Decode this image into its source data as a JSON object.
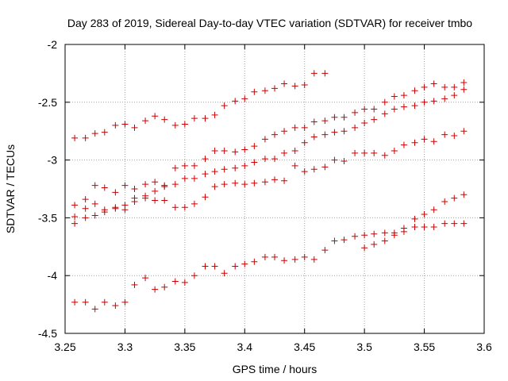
{
  "chart_data": {
    "type": "scatter",
    "title": "Day 283 of 2019, Sidereal Day-to-day VTEC variation (SDTVAR) for receiver tmbo",
    "xlabel": "GPS time / hours",
    "ylabel": "SDTVAR / TECUs",
    "xlim": [
      3.25,
      3.6
    ],
    "ylim": [
      -4.5,
      -2
    ],
    "xticks": [
      "3.25",
      "3.3",
      "3.35",
      "3.4",
      "3.45",
      "3.5",
      "3.55",
      "3.6"
    ],
    "yticks": [
      "-2",
      "-2.5",
      "-3",
      "-3.5",
      "-4",
      "-4.5"
    ],
    "grid": true,
    "marker": "+",
    "color": "#cc0000",
    "series": [
      {
        "name": "series-1",
        "x": [
          3.258,
          3.267,
          3.275,
          3.283,
          3.292,
          3.3,
          3.308,
          3.317,
          3.325,
          3.333,
          3.342,
          3.35,
          3.358,
          3.367,
          3.375,
          3.383,
          3.392,
          3.4,
          3.408,
          3.417,
          3.425,
          3.433,
          3.442,
          3.45,
          3.458,
          3.467
        ],
        "y": [
          -2.81,
          -2.81,
          -2.77,
          -2.76,
          -2.7,
          -2.69,
          -2.72,
          -2.66,
          -2.62,
          -2.65,
          -2.7,
          -2.69,
          -2.64,
          -2.64,
          -2.61,
          -2.53,
          -2.49,
          -2.47,
          -2.41,
          -2.4,
          -2.38,
          -2.34,
          -2.36,
          -2.35,
          -2.25,
          -2.25
        ]
      },
      {
        "name": "series-2",
        "x": [
          3.258,
          3.267,
          3.275,
          3.283,
          3.292,
          3.3,
          3.308,
          3.317,
          3.325,
          3.333,
          3.342,
          3.35,
          3.358,
          3.367,
          3.375,
          3.383,
          3.392,
          3.4,
          3.408,
          3.417,
          3.425,
          3.433,
          3.442,
          3.45,
          3.458,
          3.467,
          3.475,
          3.483,
          3.492,
          3.5,
          3.508,
          3.517,
          3.525,
          3.533,
          3.542,
          3.55,
          3.558,
          3.567,
          3.575,
          3.583
        ],
        "y": [
          -3.39,
          -3.34,
          -3.22,
          -3.24,
          -3.28,
          -3.22,
          -3.25,
          -3.21,
          -3.19,
          -3.23,
          -3.07,
          -3.05,
          -3.05,
          -2.99,
          -2.92,
          -2.92,
          -2.93,
          -2.91,
          -2.88,
          -2.82,
          -2.78,
          -2.75,
          -2.72,
          -2.72,
          -2.67,
          -2.66,
          -2.63,
          -2.63,
          -2.59,
          -2.56,
          -2.56,
          -2.5,
          -2.45,
          -2.44,
          -2.4,
          -2.37,
          -2.34,
          -2.37,
          -2.37,
          -2.33
        ]
      },
      {
        "name": "series-3",
        "x": [
          3.258,
          3.267,
          3.275,
          3.283,
          3.292,
          3.3,
          3.308,
          3.317,
          3.325,
          3.333,
          3.342,
          3.35,
          3.358,
          3.367,
          3.375,
          3.383,
          3.392,
          3.4,
          3.408,
          3.417,
          3.425,
          3.433,
          3.442,
          3.45,
          3.458,
          3.467,
          3.475,
          3.483,
          3.492,
          3.5,
          3.508,
          3.517,
          3.525,
          3.533,
          3.542,
          3.55,
          3.558,
          3.567,
          3.575,
          3.583
        ],
        "y": [
          -3.49,
          -3.42,
          -3.38,
          -3.43,
          -3.42,
          -3.39,
          -3.36,
          -3.33,
          -3.27,
          -3.22,
          -3.21,
          -3.16,
          -3.16,
          -3.12,
          -3.1,
          -3.08,
          -3.07,
          -3.05,
          -3.02,
          -2.99,
          -2.99,
          -2.94,
          -2.92,
          -2.85,
          -2.8,
          -2.78,
          -2.76,
          -2.75,
          -2.72,
          -2.68,
          -2.65,
          -2.6,
          -2.56,
          -2.54,
          -2.53,
          -2.5,
          -2.49,
          -2.47,
          -2.44,
          -2.39
        ]
      },
      {
        "name": "series-4",
        "x": [
          3.258,
          3.267,
          3.275,
          3.283,
          3.292,
          3.3,
          3.308,
          3.317,
          3.325,
          3.333,
          3.342,
          3.35,
          3.358,
          3.367,
          3.375,
          3.383,
          3.392,
          3.4,
          3.408,
          3.417,
          3.425,
          3.433,
          3.442,
          3.45,
          3.458,
          3.467,
          3.475,
          3.483,
          3.492,
          3.5,
          3.508,
          3.517,
          3.525,
          3.533,
          3.542,
          3.55,
          3.558,
          3.567,
          3.575,
          3.583
        ],
        "y": [
          -3.55,
          -3.5,
          -3.48,
          -3.45,
          -3.41,
          -3.43,
          -3.33,
          -3.31,
          -3.35,
          -3.35,
          -3.41,
          -3.41,
          -3.38,
          -3.32,
          -3.23,
          -3.21,
          -3.2,
          -3.21,
          -3.2,
          -3.19,
          -3.17,
          -3.18,
          -3.05,
          -3.1,
          -3.08,
          -3.06,
          -3.0,
          -3.01,
          -2.94,
          -2.94,
          -2.94,
          -2.96,
          -2.92,
          -2.87,
          -2.85,
          -2.82,
          -2.84,
          -2.78,
          -2.79,
          -2.75
        ]
      },
      {
        "name": "series-5",
        "x": [
          3.258,
          3.267,
          3.275,
          3.283,
          3.292,
          3.3,
          3.308,
          3.317,
          3.325,
          3.333,
          3.342,
          3.35,
          3.358,
          3.367,
          3.375,
          3.383,
          3.392,
          3.4,
          3.408,
          3.417,
          3.425,
          3.433,
          3.442,
          3.45,
          3.458,
          3.467,
          3.475,
          3.483,
          3.492,
          3.5,
          3.508,
          3.517,
          3.525,
          3.533,
          3.542,
          3.55,
          3.558,
          3.567,
          3.575,
          3.583
        ],
        "y": [
          -4.23,
          -4.23,
          -4.29,
          -4.23,
          -4.26,
          -4.23,
          -4.08,
          -4.02,
          -4.12,
          -4.1,
          -4.05,
          -4.06,
          -4.0,
          -3.92,
          -3.92,
          -3.98,
          -3.92,
          -3.9,
          -3.88,
          -3.84,
          -3.84,
          -3.87,
          -3.86,
          -3.84,
          -3.86,
          -3.78,
          -3.7,
          -3.69,
          -3.66,
          -3.65,
          -3.64,
          -3.63,
          -3.63,
          -3.62,
          -3.58,
          -3.58,
          -3.58,
          -3.55,
          -3.55,
          -3.55
        ]
      },
      {
        "name": "series-6",
        "x": [
          3.5,
          3.508,
          3.517,
          3.525,
          3.533,
          3.542,
          3.55,
          3.558,
          3.567,
          3.575,
          3.583
        ],
        "y": [
          -3.76,
          -3.73,
          -3.7,
          -3.65,
          -3.59,
          -3.51,
          -3.47,
          -3.43,
          -3.36,
          -3.33,
          -3.3
        ]
      }
    ]
  }
}
